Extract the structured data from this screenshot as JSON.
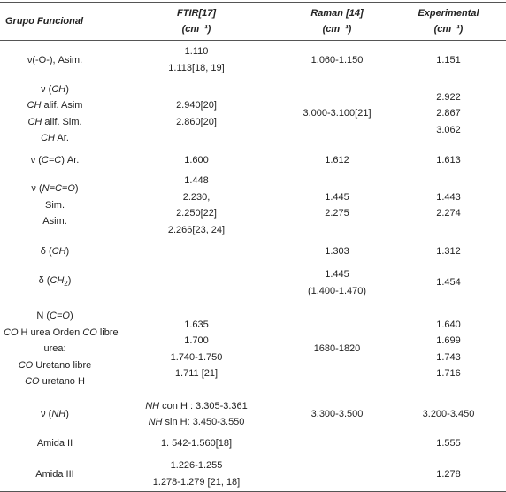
{
  "table": {
    "header": [
      [
        "Grupo Funcional"
      ],
      [
        "FTIR[17]",
        "(cm⁻¹)"
      ],
      [
        "Raman [14]",
        "(cm⁻¹)"
      ],
      [
        "Experimental",
        "(cm⁻¹)"
      ]
    ],
    "rows": [
      [
        [
          "ν(-O-), Asim."
        ],
        [
          "1.110",
          "1.113[18, 19]"
        ],
        [
          "1.060-1.150"
        ],
        [
          "1.151"
        ]
      ],
      [
        [
          {
            "parts": [
              "ν (",
              "CH",
              ")"
            ],
            "styles": [
              "normal",
              "italic",
              "normal"
            ]
          },
          {
            "parts": [
              "CH",
              " alif. Asim"
            ],
            "styles": [
              "italic",
              "normal"
            ]
          },
          {
            "parts": [
              "CH",
              " alif. Sim."
            ],
            "styles": [
              "italic",
              "normal"
            ]
          },
          {
            "parts": [
              "CH",
              " Ar."
            ],
            "styles": [
              "italic",
              "normal"
            ]
          }
        ],
        [
          "2.940[20]",
          "2.860[20]"
        ],
        [
          "3.000-3.100[21]"
        ],
        [
          "2.922",
          "2.867",
          "3.062"
        ]
      ],
      [
        [
          {
            "parts": [
              "ν (",
              "C=C",
              ") Ar."
            ],
            "styles": [
              "normal",
              "italic",
              "normal"
            ]
          }
        ],
        [
          "1.600"
        ],
        [
          "1.612"
        ],
        [
          "1.613"
        ]
      ],
      [
        [
          {
            "parts": [
              "ν (",
              "N=C=O",
              ")"
            ],
            "styles": [
              "normal",
              "italic",
              "normal"
            ]
          },
          "Sim.",
          "Asim."
        ],
        [
          "1.448",
          "2.230,",
          "2.250[22]",
          "2.266[23, 24]"
        ],
        [
          "1.445",
          "2.275"
        ],
        [
          "1.443",
          "2.274"
        ]
      ],
      [
        [
          {
            "parts": [
              "δ (",
              "CH",
              ")"
            ],
            "styles": [
              "normal",
              "italic",
              "normal"
            ]
          }
        ],
        [],
        [
          "1.303"
        ],
        [
          "1.312"
        ]
      ],
      [
        [
          {
            "parts": [
              "δ (",
              "CH",
              "2",
              ")"
            ],
            "styles": [
              "normal",
              "italic",
              "sub",
              "normal"
            ]
          }
        ],
        [],
        [
          "1.445",
          "(1.400-1.470)"
        ],
        [
          "1.454"
        ]
      ],
      [
        [
          {
            "parts": [
              "N (",
              "C=O",
              ")"
            ],
            "styles": [
              "normal",
              "italic",
              "normal"
            ]
          },
          {
            "parts": [
              "CO",
              " H urea Orden ",
              "CO",
              " libre"
            ],
            "styles": [
              "italic",
              "normal",
              "italic",
              "normal"
            ]
          },
          "urea:",
          {
            "parts": [
              "CO",
              " Uretano libre"
            ],
            "styles": [
              "italic",
              "normal"
            ]
          },
          {
            "parts": [
              "CO",
              " uretano H"
            ],
            "styles": [
              "italic",
              "normal"
            ]
          }
        ],
        [
          "1.635",
          "1.700",
          "1.740-1.750",
          "1.711 [21]"
        ],
        [
          "1680-1820"
        ],
        [
          "1.640",
          "1.699",
          "1.743",
          "1.716"
        ]
      ],
      [
        [
          {
            "parts": [
              "ν (",
              "NH",
              ")"
            ],
            "styles": [
              "normal",
              "italic",
              "normal"
            ]
          }
        ],
        [
          {
            "parts": [
              "NH",
              " con H : 3.305-3.361"
            ],
            "styles": [
              "italic",
              "normal"
            ]
          },
          {
            "parts": [
              "NH",
              " sin H: 3.450-3.550"
            ],
            "styles": [
              "italic",
              "normal"
            ]
          }
        ],
        [
          "3.300-3.500"
        ],
        [
          "3.200-3.450"
        ]
      ],
      [
        [
          "Amida II"
        ],
        [
          "1. 542-1.560[18]"
        ],
        [],
        [
          "1.555"
        ]
      ],
      [
        [
          "Amida III"
        ],
        [
          "1.226-1.255",
          "1.278-1.279 [21, 18]"
        ],
        [],
        [
          "1.278"
        ]
      ]
    ]
  }
}
